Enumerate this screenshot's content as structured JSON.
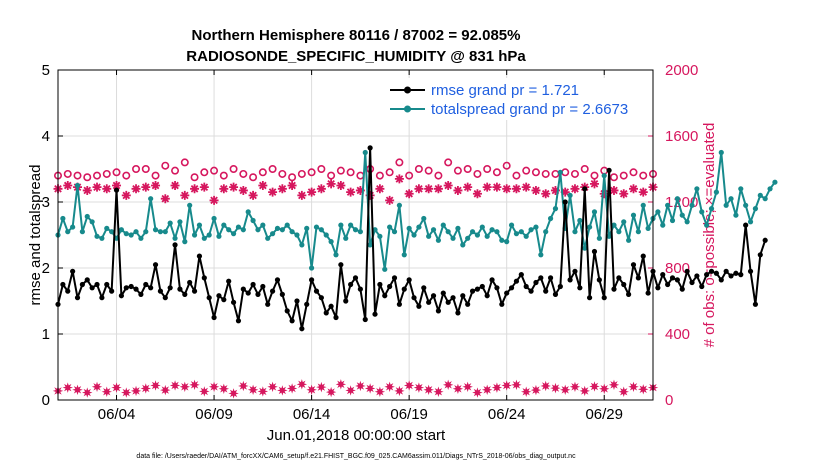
{
  "chart_data": {
    "type": "line",
    "title": "Northern Hemisphere 80116 / 87002 = 92.085%",
    "subtitle": "RADIOSONDE_SPECIFIC_HUMIDITY @ 831 hPa",
    "xlabel": "Jun.01,2018 00:00:00 start",
    "ylabel": "rmse and totalspread",
    "y2label": "# of obs: o=possible; ×=evaluated",
    "footnote": "data file: /Users/raeder/DAI/ATM_forcXX/CAM6_setup/f.e21.FHIST_BGC.f09_025.CAM6assim.011/Diags_NTrS_2018-06/obs_diag_output.nc",
    "xlim": [
      0,
      30.5
    ],
    "ylim": [
      0,
      5
    ],
    "y2lim": [
      0,
      2000
    ],
    "x_ticks": [
      3,
      8,
      13,
      18,
      23,
      28
    ],
    "x_tick_labels": [
      "06/04",
      "06/09",
      "06/14",
      "06/19",
      "06/24",
      "06/29"
    ],
    "y_ticks": [
      0,
      1,
      2,
      3,
      4,
      5
    ],
    "y_tick_labels": [
      "0",
      "1",
      "2",
      "3",
      "4",
      "5"
    ],
    "y2_ticks": [
      0,
      400,
      800,
      1200,
      1600,
      2000
    ],
    "y2_tick_labels": [
      "0",
      "400",
      "800",
      "1200",
      "1600",
      "2000"
    ],
    "grid": true,
    "legend_position": "top-right",
    "x_step": 0.25,
    "series": [
      {
        "name": "rmse grand pr = 1.721",
        "axis": "left",
        "color": "#000000",
        "marker": "dot",
        "values": [
          1.45,
          1.75,
          1.65,
          1.95,
          1.55,
          1.75,
          1.82,
          1.7,
          1.75,
          1.55,
          1.75,
          1.65,
          3.18,
          1.58,
          1.7,
          1.72,
          1.68,
          1.6,
          1.75,
          1.7,
          2.05,
          1.65,
          1.55,
          1.7,
          2.35,
          1.68,
          1.6,
          1.78,
          1.65,
          2.18,
          1.85,
          1.55,
          1.25,
          1.58,
          1.52,
          1.8,
          1.48,
          1.2,
          1.68,
          1.62,
          1.75,
          1.6,
          1.72,
          1.45,
          1.65,
          1.82,
          1.6,
          1.35,
          1.2,
          1.5,
          1.08,
          1.45,
          1.82,
          1.65,
          1.55,
          1.32,
          1.42,
          1.25,
          2.05,
          1.5,
          1.75,
          1.85,
          1.68,
          1.22,
          3.82,
          1.3,
          1.75,
          1.58,
          1.72,
          1.85,
          1.45,
          1.68,
          1.82,
          1.55,
          1.42,
          1.7,
          1.48,
          1.58,
          1.35,
          1.62,
          1.48,
          1.55,
          1.32,
          1.58,
          1.45,
          1.65,
          1.68,
          1.72,
          1.58,
          1.82,
          1.7,
          1.45,
          1.62,
          1.7,
          1.8,
          1.9,
          1.72,
          1.65,
          1.78,
          1.85,
          1.65,
          1.85,
          1.6,
          1.72,
          3.0,
          1.82,
          1.95,
          1.7,
          3.2,
          1.55,
          2.25,
          1.82,
          1.55,
          3.48,
          1.68,
          1.85,
          1.75,
          1.6,
          2.05,
          1.85,
          2.18,
          1.62,
          1.95,
          1.7,
          1.9,
          1.75,
          1.85,
          1.82,
          1.68,
          1.95,
          1.78,
          1.88,
          1.72,
          1.9,
          1.95,
          1.92,
          1.82,
          1.95,
          1.88,
          1.92,
          1.9,
          2.65,
          1.95,
          1.45,
          2.2,
          2.42
        ]
      },
      {
        "name": "totalspread grand pr = 2.6673",
        "axis": "left",
        "color": "#178a8c",
        "marker": "dot",
        "values": [
          2.5,
          2.75,
          2.55,
          2.62,
          3.25,
          2.55,
          2.78,
          2.7,
          2.48,
          2.45,
          2.6,
          2.55,
          2.45,
          2.58,
          2.52,
          2.5,
          2.55,
          2.45,
          2.55,
          3.05,
          2.58,
          2.55,
          2.55,
          2.68,
          2.45,
          2.7,
          2.4,
          2.95,
          2.5,
          2.65,
          2.45,
          2.5,
          2.75,
          2.48,
          2.65,
          2.58,
          2.52,
          2.62,
          2.58,
          2.85,
          2.72,
          2.58,
          2.65,
          2.45,
          2.52,
          2.6,
          2.58,
          2.65,
          2.55,
          2.5,
          2.35,
          2.6,
          2.0,
          2.62,
          2.58,
          2.5,
          2.4,
          2.2,
          2.65,
          2.45,
          2.65,
          2.58,
          2.55,
          3.75,
          2.35,
          2.58,
          2.48,
          1.98,
          2.62,
          2.55,
          2.95,
          2.2,
          2.6,
          2.5,
          2.62,
          2.75,
          2.48,
          2.58,
          2.42,
          2.65,
          2.55,
          2.45,
          2.6,
          2.35,
          2.45,
          2.55,
          2.5,
          2.62,
          2.48,
          2.58,
          2.55,
          2.42,
          2.4,
          2.65,
          2.52,
          2.55,
          2.48,
          2.58,
          2.62,
          2.2,
          2.55,
          2.75,
          2.9,
          3.45,
          2.6,
          3.1,
          2.55,
          2.72,
          2.3,
          2.62,
          2.85,
          2.45,
          3.4,
          2.48,
          2.65,
          2.55,
          2.7,
          2.42,
          2.8,
          2.55,
          2.95,
          2.6,
          2.75,
          2.85,
          2.65,
          2.95,
          2.72,
          3.05,
          2.8,
          2.7,
          2.95,
          3.2,
          2.85,
          2.65,
          2.9,
          3.15,
          3.75,
          2.95,
          3.05,
          2.8,
          3.2,
          2.95,
          2.7,
          2.9,
          3.1,
          3.05,
          3.2,
          3.3
        ]
      }
    ],
    "obs_possible": {
      "axis": "right",
      "color": "#d6175e",
      "marker": "open-circle",
      "x_step": 0.5,
      "values": [
        1360,
        1370,
        1360,
        1350,
        1360,
        1370,
        1380,
        1360,
        1400,
        1400,
        1360,
        1420,
        1390,
        1440,
        1350,
        1380,
        1390,
        1360,
        1400,
        1370,
        1350,
        1380,
        1400,
        1370,
        1350,
        1370,
        1380,
        1400,
        1360,
        1390,
        1380,
        1360,
        1400,
        1360,
        1380,
        1440,
        1360,
        1400,
        1390,
        1360,
        1440,
        1390,
        1400,
        1370,
        1400,
        1380,
        1420,
        1360,
        1390,
        1380,
        1370,
        1370,
        1380,
        1370,
        1400,
        1360,
        1390,
        1350,
        1360,
        1380,
        1360,
        1370
      ]
    },
    "obs_evaluated": {
      "axis": "right",
      "color": "#d6175e",
      "marker": "asterisk",
      "x_step": 0.5,
      "values": [
        1280,
        1300,
        1290,
        1270,
        1290,
        1280,
        1300,
        1240,
        1280,
        1290,
        1300,
        1220,
        1300,
        1240,
        1280,
        1290,
        1210,
        1280,
        1290,
        1270,
        1240,
        1300,
        1260,
        1280,
        1300,
        1240,
        1260,
        1280,
        1310,
        1300,
        1260,
        1270,
        1240,
        1280,
        1210,
        1340,
        1250,
        1280,
        1280,
        1280,
        1300,
        1270,
        1290,
        1250,
        1290,
        1290,
        1280,
        1280,
        1290,
        1270,
        1250,
        1270,
        1260,
        1280,
        1290,
        1310,
        1250,
        1270,
        1250,
        1280,
        1260,
        1290
      ]
    },
    "obs_low": {
      "axis": "right",
      "color": "#d6175e",
      "marker": "filled-star",
      "x_step": 0.5,
      "values": [
        55,
        75,
        62,
        45,
        80,
        50,
        75,
        45,
        55,
        70,
        88,
        60,
        88,
        80,
        92,
        52,
        80,
        68,
        40,
        85,
        62,
        52,
        80,
        58,
        70,
        95,
        62,
        78,
        48,
        95,
        58,
        85,
        70,
        50,
        80,
        55,
        88,
        75,
        62,
        50,
        92,
        68,
        80,
        45,
        62,
        75,
        88,
        92,
        50,
        60,
        85,
        72,
        62,
        80,
        55,
        82,
        68,
        92,
        50,
        80,
        65,
        75
      ]
    }
  }
}
